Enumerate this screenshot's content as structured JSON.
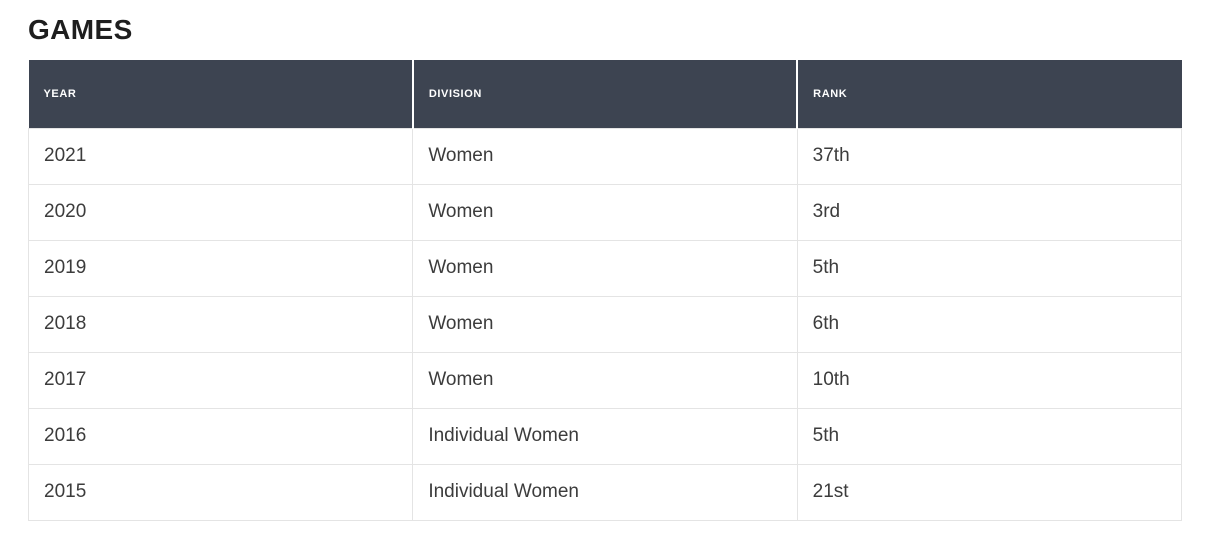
{
  "page": {
    "title": "GAMES"
  },
  "table": {
    "columns": [
      {
        "label": "YEAR"
      },
      {
        "label": "DIVISION"
      },
      {
        "label": "RANK"
      }
    ],
    "rows": [
      {
        "year": "2021",
        "division": "Women",
        "rank": "37th"
      },
      {
        "year": "2020",
        "division": "Women",
        "rank": "3rd"
      },
      {
        "year": "2019",
        "division": "Women",
        "rank": "5th"
      },
      {
        "year": "2018",
        "division": "Women",
        "rank": "6th"
      },
      {
        "year": "2017",
        "division": "Women",
        "rank": "10th"
      },
      {
        "year": "2016",
        "division": "Individual Women",
        "rank": "5th"
      },
      {
        "year": "2015",
        "division": "Individual Women",
        "rank": "21st"
      }
    ]
  },
  "colors": {
    "header_bg": "#3d4451",
    "header_text": "#ffffff",
    "header_divider": "#ffffff",
    "body_text": "#3c3c3c",
    "row_border": "#e4e4e4",
    "title_text": "#1e1e1e",
    "page_bg": "#ffffff"
  }
}
